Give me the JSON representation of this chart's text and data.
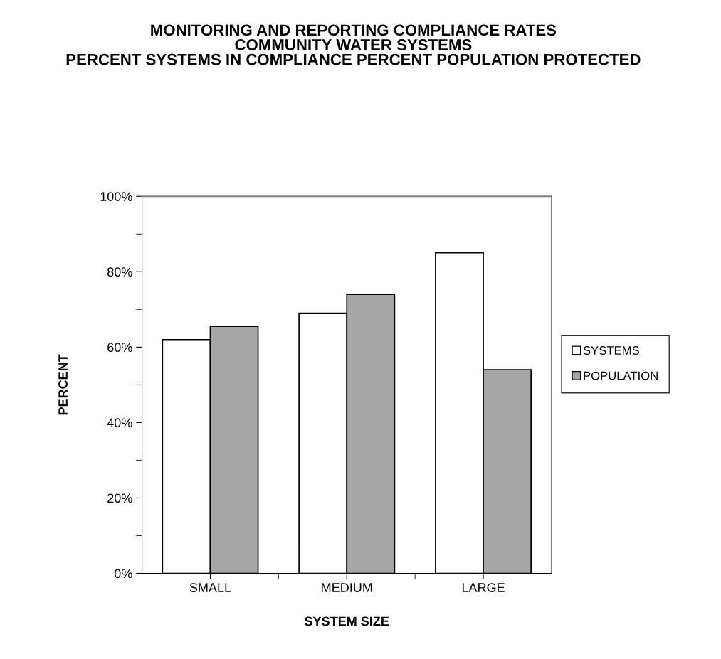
{
  "chart_data": {
    "type": "bar",
    "title": "MONITORING AND REPORTING COMPLIANCE RATES\nCOMMUNITY WATER SYSTEMS\nPERCENT SYSTEMS IN COMPLIANCE PERCENT POPULATION PROTECTED",
    "xlabel": "SYSTEM SIZE",
    "ylabel": "PERCENT",
    "categories": [
      "SMALL",
      "MEDIUM",
      "LARGE"
    ],
    "series": [
      {
        "name": "SYSTEMS",
        "color": "#ffffff",
        "values": [
          62,
          69,
          85
        ]
      },
      {
        "name": "POPULATION",
        "color": "#a6a6a6",
        "values": [
          65.5,
          74,
          54
        ]
      }
    ],
    "ylim": [
      0,
      100
    ],
    "yticks": [
      {
        "value": 0,
        "label": "0%"
      },
      {
        "value": 20,
        "label": "20%"
      },
      {
        "value": 40,
        "label": "40%"
      },
      {
        "value": 60,
        "label": "60%"
      },
      {
        "value": 80,
        "label": "80%"
      },
      {
        "value": 100,
        "label": "100%"
      }
    ],
    "grid": false,
    "legend": "right"
  }
}
